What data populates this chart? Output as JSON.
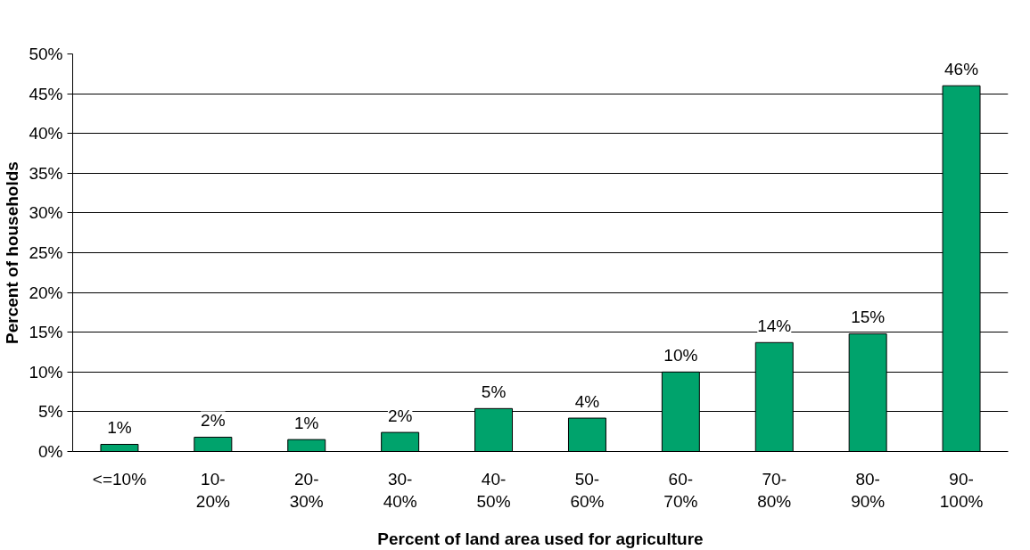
{
  "chart_data": {
    "type": "bar",
    "xlabel": "Percent of land area used for agriculture",
    "ylabel": "Percent of households",
    "categories": [
      "<=10%",
      "10-\n20%",
      "20-\n30%",
      "30-\n40%",
      "40-\n50%",
      "50-\n60%",
      "60-\n70%",
      "70-\n80%",
      "80-\n90%",
      "90-\n100%"
    ],
    "values": [
      0.9,
      1.8,
      1.5,
      2.4,
      5.4,
      4.2,
      10.0,
      13.7,
      14.8,
      46.0
    ],
    "value_labels": [
      "1%",
      "2%",
      "1%",
      "2%",
      "5%",
      "4%",
      "10%",
      "14%",
      "15%",
      "46%"
    ],
    "color": "#00a36c",
    "ylim": [
      0,
      50
    ],
    "yticks": [
      {
        "value": 0,
        "label": "0%"
      },
      {
        "value": 5,
        "label": "5%"
      },
      {
        "value": 10,
        "label": "10%"
      },
      {
        "value": 15,
        "label": "15%"
      },
      {
        "value": 20,
        "label": "20%"
      },
      {
        "value": 25,
        "label": "25%"
      },
      {
        "value": 30,
        "label": "30%"
      },
      {
        "value": 35,
        "label": "35%"
      },
      {
        "value": 40,
        "label": "40%"
      },
      {
        "value": 45,
        "label": "45%"
      },
      {
        "value": 50,
        "label": "50%"
      }
    ],
    "grid": "y"
  }
}
